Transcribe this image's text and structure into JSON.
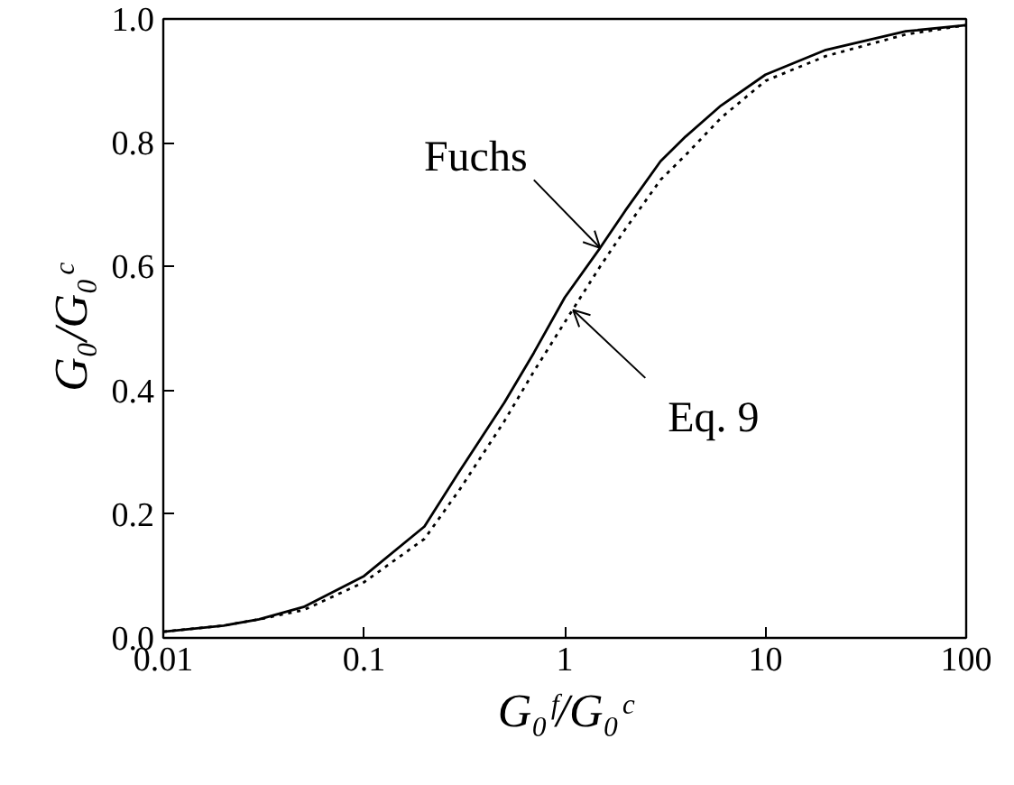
{
  "chart_data": {
    "type": "line",
    "xlabel": "G₀ᶠ/G₀ᶜ",
    "ylabel": "G₀/G₀ᶜ",
    "log": "x",
    "xlim": [
      0.01,
      100
    ],
    "ylim": [
      0,
      1
    ],
    "xticks": [
      0.01,
      0.1,
      1,
      10,
      100
    ],
    "yticks": [
      {
        "value": 0,
        "label": "0.0"
      },
      0.2,
      0.4,
      0.6,
      0.8,
      {
        "value": 1,
        "label": "1.0"
      }
    ],
    "grid": false,
    "series": [
      {
        "color": "#000000",
        "line_style": "solid",
        "x": [
          0.01,
          0.02,
          0.03,
          0.05,
          0.1,
          0.2,
          0.3,
          0.5,
          0.7,
          1,
          1.5,
          2,
          3,
          4,
          6,
          10,
          20,
          50,
          100
        ],
        "values": [
          0.01,
          0.02,
          0.03,
          0.05,
          0.1,
          0.18,
          0.27,
          0.38,
          0.46,
          0.55,
          0.63,
          0.69,
          0.77,
          0.81,
          0.86,
          0.91,
          0.95,
          0.98,
          0.99
        ]
      },
      {
        "color": "#000000",
        "line_style": "dotted",
        "x": [
          0.01,
          0.02,
          0.03,
          0.05,
          0.1,
          0.2,
          0.3,
          0.5,
          0.7,
          1,
          1.5,
          2,
          3,
          4,
          6,
          10,
          20,
          50,
          100
        ],
        "values": [
          0.01,
          0.02,
          0.03,
          0.045,
          0.09,
          0.16,
          0.24,
          0.35,
          0.43,
          0.51,
          0.6,
          0.66,
          0.74,
          0.78,
          0.84,
          0.9,
          0.94,
          0.975,
          0.99
        ]
      }
    ],
    "annotations": [
      {
        "text": "Fuchs",
        "x": 1.5,
        "y": 0.63
      },
      {
        "text": "Eq. 9",
        "x": 1.1,
        "y": 0.53
      }
    ]
  }
}
